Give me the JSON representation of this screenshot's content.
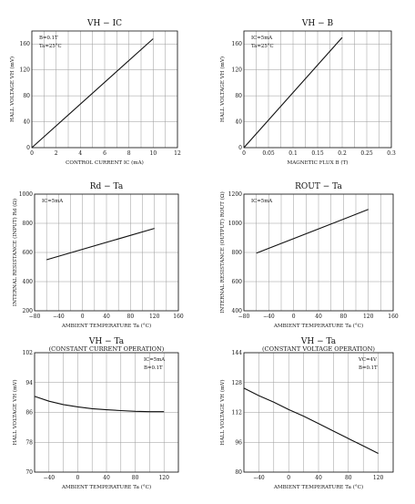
{
  "chart_data": [
    {
      "type": "line",
      "title": "VH − IC",
      "subtitle": "",
      "xlabel": "CONTROL CURRENT  IC  (mA)",
      "ylabel": "HALL VOLTAGE  VH  (mV)",
      "notes": [
        "B=0.1T",
        "Ta=25°C"
      ],
      "xlim": [
        0,
        12
      ],
      "ylim": [
        0,
        180
      ],
      "xticks": [
        "0",
        "2",
        "4",
        "6",
        "8",
        "10",
        "12"
      ],
      "yticks": [
        "0",
        "40",
        "80",
        "120",
        "160"
      ],
      "grid": true,
      "series": [
        {
          "x": [
            0,
            10
          ],
          "y": [
            0,
            168
          ]
        }
      ]
    },
    {
      "type": "line",
      "title": "VH − B",
      "subtitle": "",
      "xlabel": "MAGNETIC FLUX  B  (T)",
      "ylabel": "HALL VOLTAGE  VH  (mV)",
      "notes": [
        "IC=5mA",
        "Ta=25°C"
      ],
      "xlim": [
        0,
        0.3
      ],
      "ylim": [
        0,
        180
      ],
      "xticks": [
        "0",
        "0.05",
        "0.1",
        "0.15",
        "0.2",
        "0.25",
        "0.3"
      ],
      "yticks": [
        "0",
        "40",
        "80",
        "120",
        "160"
      ],
      "grid": true,
      "series": [
        {
          "x": [
            0,
            0.2
          ],
          "y": [
            0,
            170
          ]
        }
      ]
    },
    {
      "type": "line",
      "title": "Rd − Ta",
      "subtitle": "",
      "xlabel": "AMBIENT TEMPERATURE  Ta  (°C)",
      "ylabel": "INTERNAL RESISTANCE (INPUT)  Rd  (Ω)",
      "notes": [
        "IC=5mA"
      ],
      "xlim": [
        -80,
        160
      ],
      "ylim": [
        200,
        1000
      ],
      "xticks": [
        "−80",
        "−40",
        "0",
        "40",
        "80",
        "120",
        "160"
      ],
      "yticks": [
        "200",
        "400",
        "600",
        "800",
        "1000"
      ],
      "grid": true,
      "series": [
        {
          "x": [
            -60,
            120
          ],
          "y": [
            550,
            765
          ]
        }
      ]
    },
    {
      "type": "line",
      "title": "ROUT − Ta",
      "subtitle": "",
      "xlabel": "AMBIENT TEMPERATURE  Ta  (°C)",
      "ylabel": "INTERNAL RESISTANCE (OUTPUT)  ROUT  (Ω)",
      "notes": [
        "IC=5mA"
      ],
      "xlim": [
        -80,
        160
      ],
      "ylim": [
        400,
        1200
      ],
      "xticks": [
        "−80",
        "−40",
        "0",
        "40",
        "80",
        "120",
        "160"
      ],
      "yticks": [
        "400",
        "600",
        "800",
        "1000",
        "1200"
      ],
      "grid": true,
      "series": [
        {
          "x": [
            -60,
            120
          ],
          "y": [
            795,
            1095
          ]
        }
      ]
    },
    {
      "type": "line",
      "title": "VH − Ta",
      "subtitle": "(CONSTANT CURRENT OPERATION)",
      "xlabel": "AMBIENT TEMPERATURE  Ta  (°C)",
      "ylabel": "HALL VOLTAGE  VH  (mV)",
      "notes": [
        "IC=5mA",
        "B=0.1T"
      ],
      "xlim": [
        -60,
        140
      ],
      "ylim": [
        70,
        102
      ],
      "xticks": [
        "−40",
        "0",
        "40",
        "80",
        "120"
      ],
      "yticks": [
        "70",
        "78",
        "86",
        "94",
        "102"
      ],
      "grid": true,
      "series": [
        {
          "x": [
            -60,
            -40,
            -20,
            0,
            20,
            40,
            60,
            80,
            100,
            120
          ],
          "y": [
            90.3,
            89.0,
            88.1,
            87.5,
            87.0,
            86.7,
            86.5,
            86.3,
            86.2,
            86.2
          ]
        }
      ]
    },
    {
      "type": "line",
      "title": "VH − Ta",
      "subtitle": "(CONSTANT VOLTAGE OPERATION)",
      "xlabel": "AMBIENT TEMPERATURE  Ta  (°C)",
      "ylabel": "HALL VOLTAGE  VH  (mV)",
      "notes": [
        "VC=4V",
        "B=0.1T"
      ],
      "xlim": [
        -60,
        140
      ],
      "ylim": [
        80,
        144
      ],
      "xticks": [
        "−40",
        "0",
        "40",
        "80",
        "120"
      ],
      "yticks": [
        "80",
        "96",
        "112",
        "128",
        "144"
      ],
      "grid": true,
      "series": [
        {
          "x": [
            -60,
            -40,
            -20,
            0,
            20,
            40,
            60,
            80,
            100,
            120
          ],
          "y": [
            125,
            121,
            117.5,
            113.5,
            110,
            106,
            102,
            98,
            94,
            90
          ]
        }
      ]
    }
  ]
}
